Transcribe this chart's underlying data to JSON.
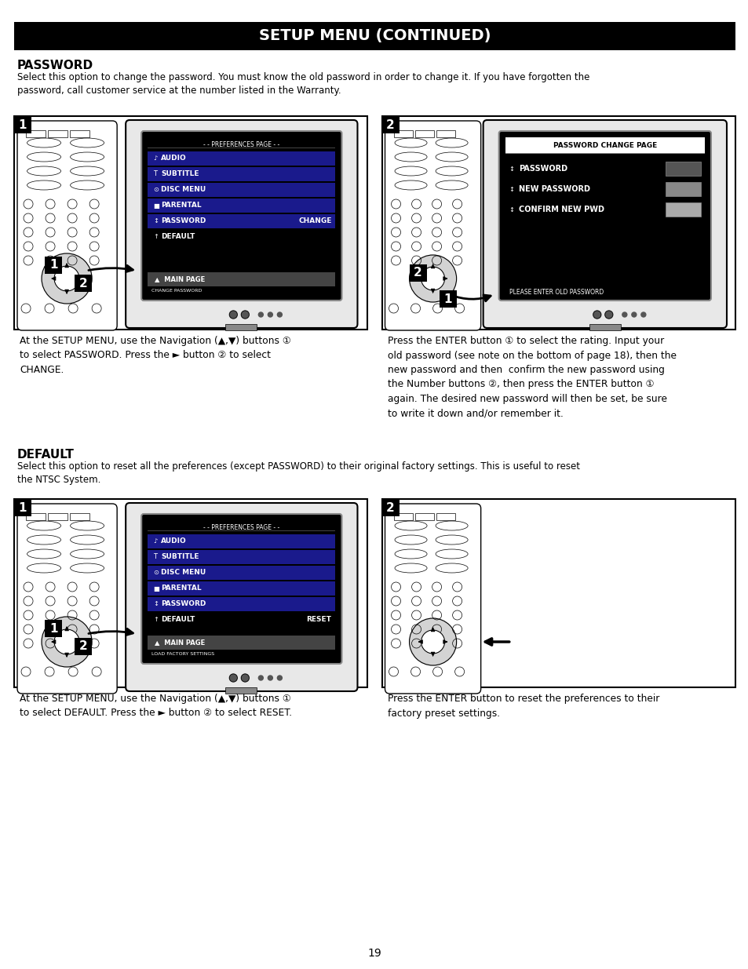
{
  "title": "SETUP MENU (CONTINUED)",
  "page_bg": "#ffffff",
  "section1_heading": "PASSWORD",
  "section1_body": "Select this option to change the password. You must know the old password in order to change it. If you have forgotten the\npassword, call customer service at the number listed in the Warranty.",
  "section2_heading": "DEFAULT",
  "section2_body": "Select this option to reset all the preferences (except PASSWORD) to their original factory settings. This is useful to reset\nthe NTSC System.",
  "box1_label1": "At the SETUP MENU, use the Navigation (▲,▼) buttons ①\nto select PASSWORD. Press the ► button ② to select\nCHANGE.",
  "box1_label2": "Press the ENTER button ① to select the rating. Input your\nold password (see note on the bottom of page 18), then the\nnew password and then  confirm the new password using\nthe Number buttons ②, then press the ENTER button ①\nagain. The desired new password will then be set, be sure\nto write it down and/or remember it.",
  "box2_label1": "At the SETUP MENU, use the Navigation (▲,▼) buttons ①\nto select DEFAULT. Press the ► button ② to select RESET.",
  "box2_label2": "Press the ENTER button to reset the preferences to their\nfactory preset settings.",
  "prefs_menu_items": [
    "AUDIO",
    "SUBTITLE",
    "DISC MENU",
    "PARENTAL",
    "PASSWORD",
    "DEFAULT"
  ],
  "prefs_menu_title": "- - PREFERENCES PAGE - -",
  "pwd_change_title": "PASSWORD CHANGE PAGE",
  "pwd_change_items": [
    "PASSWORD",
    "NEW PASSWORD",
    "CONFIRM NEW PWD"
  ],
  "pwd_change_note": "PLEASE ENTER OLD PASSWORD",
  "change_label": "CHANGE",
  "reset_label": "RESET",
  "change_pwd_label": "CHANGE PASSWORD",
  "load_factory_label": "LOAD FACTORY SETTINGS",
  "main_page_label": "MAIN PAGE",
  "page_number": "19",
  "figw": 9.54,
  "figh": 12.35,
  "dpi": 100
}
